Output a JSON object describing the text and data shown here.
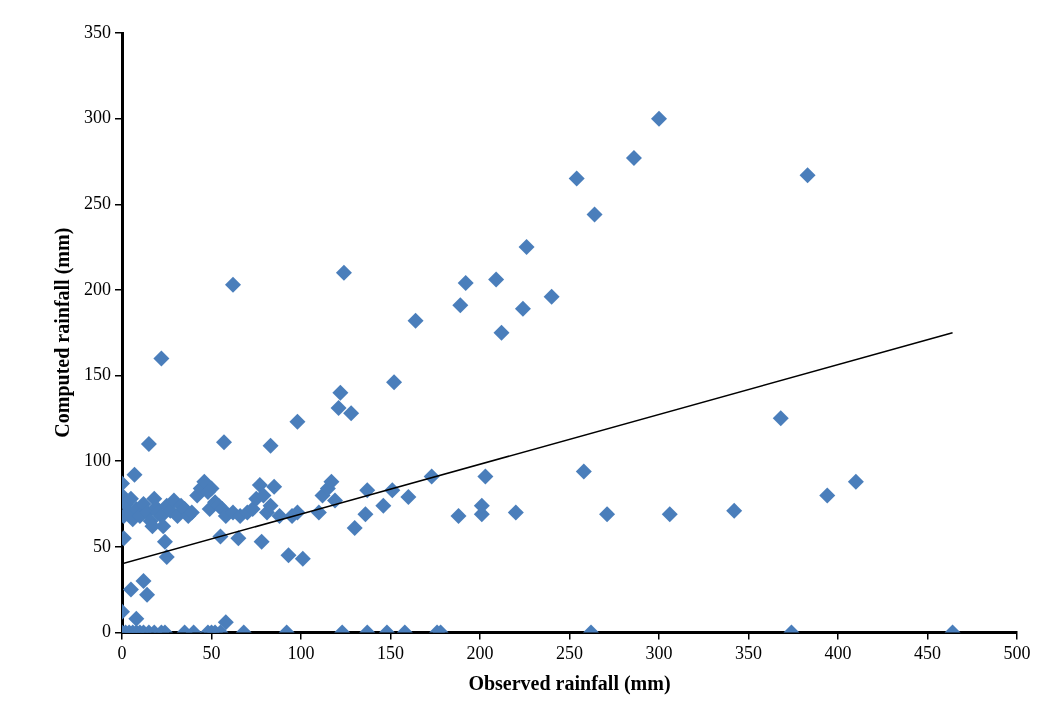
{
  "chart_data": {
    "type": "scatter",
    "xlabel": "Observed rainfall (mm)",
    "ylabel": "Computed rainfall (mm)",
    "xlim": [
      0,
      500
    ],
    "xticks": [
      0,
      50,
      100,
      150,
      200,
      250,
      300,
      350,
      400,
      450,
      500
    ],
    "ylim": [
      0,
      350
    ],
    "yticks": [
      0,
      50,
      100,
      150,
      200,
      250,
      300,
      350
    ],
    "grid": false,
    "legend": false,
    "marker": "diamond",
    "series": [
      {
        "type": "scatter",
        "color": "#4a7ebb",
        "x": [
          300,
          286,
          254,
          383,
          264,
          226,
          209,
          192,
          189,
          224,
          240,
          212,
          164,
          152,
          62,
          124,
          22,
          15,
          57,
          122,
          121,
          128,
          98,
          83,
          258,
          368,
          173,
          203,
          410,
          394,
          188,
          201,
          220,
          271,
          306,
          342,
          201,
          160,
          151,
          137,
          146,
          136,
          130,
          93,
          101,
          55,
          78,
          65,
          25,
          24,
          1,
          0,
          0,
          1,
          2,
          4,
          5,
          6,
          7,
          8,
          10,
          12,
          14,
          16,
          17,
          18,
          19,
          20,
          22,
          23,
          25,
          27,
          29,
          31,
          33,
          35,
          37,
          39,
          42,
          44,
          46,
          48,
          49,
          50,
          52,
          54,
          56,
          58,
          62,
          66,
          70,
          73,
          75,
          77,
          79,
          81,
          83,
          85,
          88,
          95,
          98,
          110,
          112,
          115,
          117,
          119,
          5,
          12,
          14,
          0,
          8,
          58,
          0,
          2,
          4,
          6,
          8,
          10,
          12,
          15,
          18,
          22,
          24,
          35,
          40,
          48,
          50,
          52,
          55,
          68,
          92,
          123,
          137,
          148,
          158,
          176,
          178,
          262,
          374,
          464
        ],
        "values": [
          300,
          277,
          265,
          267,
          244,
          225,
          206,
          204,
          191,
          189,
          196,
          175,
          182,
          146,
          203,
          210,
          160,
          110,
          111,
          140,
          131,
          128,
          123,
          109,
          94,
          125,
          91,
          91,
          88,
          80,
          68,
          69,
          70,
          69,
          69,
          71,
          74,
          79,
          83,
          83,
          74,
          69,
          61,
          45,
          43,
          56,
          53,
          55,
          44,
          53,
          55,
          80,
          87,
          68,
          75,
          70,
          78,
          66,
          92,
          72,
          68,
          75,
          70,
          65,
          62,
          78,
          73,
          70,
          68,
          62,
          74,
          71,
          77,
          68,
          74,
          72,
          68,
          70,
          80,
          84,
          88,
          82,
          72,
          84,
          76,
          74,
          72,
          68,
          70,
          68,
          70,
          72,
          78,
          86,
          80,
          70,
          74,
          85,
          68,
          68,
          70,
          70,
          80,
          84,
          88,
          77,
          25,
          30,
          22,
          12,
          8,
          6,
          0,
          0,
          0,
          0,
          0,
          0,
          0,
          0,
          0,
          0,
          0,
          0,
          0,
          0,
          0,
          0,
          0,
          0,
          0,
          0,
          0,
          0,
          0,
          0,
          0,
          0,
          0,
          0
        ]
      },
      {
        "type": "line",
        "color": "#000000",
        "x": [
          0,
          464
        ],
        "values": [
          40,
          175
        ],
        "marker": "none"
      }
    ]
  }
}
